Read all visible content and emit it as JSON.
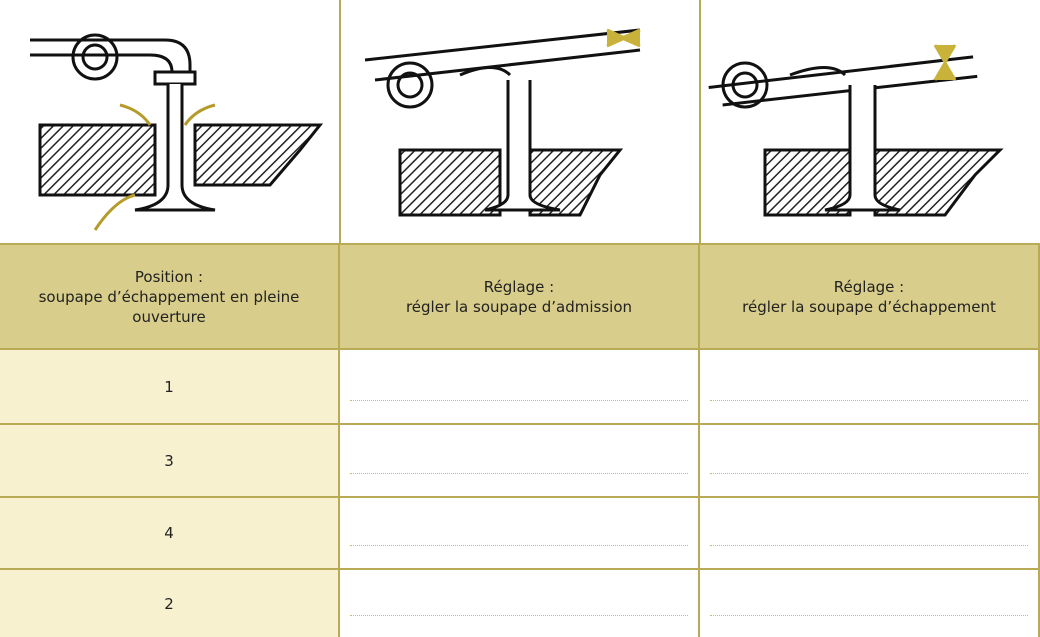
{
  "table": {
    "header": [
      [
        "Position :",
        "soupape d’échappement en pleine",
        "ouverture"
      ],
      [
        "Réglage :",
        "régler la soupape d’admission"
      ],
      [
        "Réglage :",
        "régler la soupape d’échappement"
      ]
    ],
    "rows": [
      "1",
      "3",
      "4",
      "2"
    ]
  }
}
